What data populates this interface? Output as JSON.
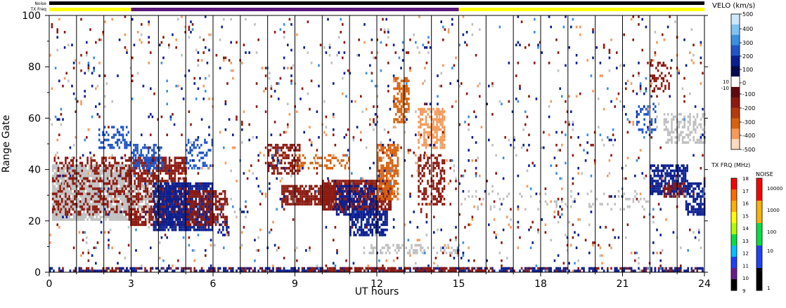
{
  "chart_data": {
    "type": "heatmap",
    "title": "",
    "xlabel": "UT hours",
    "ylabel": "Range Gate",
    "xlim": [
      0,
      24
    ],
    "ylim": [
      0,
      100
    ],
    "x_ticks": [
      "0",
      "3",
      "6",
      "9",
      "12",
      "15",
      "18",
      "21",
      "24"
    ],
    "y_ticks": [
      "0",
      "20",
      "40",
      "60",
      "80",
      "100"
    ],
    "status_bars": [
      {
        "label": "Noise",
        "segments": [
          {
            "x0": 0,
            "x1": 24,
            "color": "#000000"
          }
        ]
      },
      {
        "label": "TX Freq",
        "segments": [
          {
            "x0": 0,
            "x1": 3,
            "color": "#ffff00"
          },
          {
            "x0": 3,
            "x1": 15,
            "color": "#5a167a"
          },
          {
            "x0": 15,
            "x1": 24,
            "color": "#ffff00"
          }
        ]
      }
    ],
    "velocity_scale": {
      "label": "VELO (km/s)",
      "ticks": [
        "500",
        "400",
        "300",
        "200",
        "100",
        "0",
        "10",
        "-10",
        "-100",
        "-200",
        "-300",
        "-400",
        "-500"
      ],
      "colors": [
        "#cde9f8",
        "#7fc3ef",
        "#3b8fe0",
        "#1f55c8",
        "#0b1f90",
        "#08094d",
        "#ffffff",
        "#5c0a10",
        "#8c1a10",
        "#b23a0d",
        "#d8620e",
        "#f59a5a",
        "#fcd9bf"
      ]
    },
    "tx_freq_scale": {
      "label": "TX FRQ (MHz)",
      "ticks": [
        "18",
        "17",
        "16",
        "15",
        "14",
        "13",
        "12",
        "11",
        "10",
        "9"
      ],
      "colors": [
        "#ff0000",
        "#ff6a00",
        "#ffb000",
        "#ffff00",
        "#b0ff00",
        "#00e040",
        "#00c0ff",
        "#2040ff",
        "#6a1a8a",
        "#000000"
      ]
    },
    "noise_scale": {
      "label": "NOISE",
      "ticks": [
        "10000",
        "1000",
        "100",
        "10",
        "1"
      ],
      "colors": [
        "#ff0000",
        "#ffb000",
        "#00e040",
        "#2040ff",
        "#000000"
      ]
    },
    "colors": {
      "ground_scatter": "#c0c0c0",
      "neg_strong": "#8c1a10",
      "neg_orange": "#d8620e",
      "neg_light": "#f59a5a",
      "pos_dark": "#0b1f90",
      "pos_mid": "#1f55c8",
      "pos_light": "#3b8fe0"
    },
    "regions": [
      {
        "t0": 0.1,
        "t1": 3.0,
        "g0": 20,
        "g1": 42,
        "kind": "ground_scatter",
        "density": 0.85
      },
      {
        "t0": 0.1,
        "t1": 3.0,
        "g0": 22,
        "g1": 45,
        "kind": "neg_strong",
        "density": 0.35
      },
      {
        "t0": 2.9,
        "t1": 5.0,
        "g0": 18,
        "g1": 45,
        "kind": "neg_strong",
        "density": 0.75
      },
      {
        "t0": 2.9,
        "t1": 4.0,
        "g0": 25,
        "g1": 35,
        "kind": "ground_scatter",
        "density": 0.4
      },
      {
        "t0": 3.8,
        "t1": 6.0,
        "g0": 16,
        "g1": 35,
        "kind": "pos_dark",
        "density": 0.85
      },
      {
        "t0": 5.0,
        "t1": 6.5,
        "g0": 18,
        "g1": 32,
        "kind": "neg_strong",
        "density": 0.6
      },
      {
        "t0": 6.2,
        "t1": 6.6,
        "g0": 14,
        "g1": 20,
        "kind": "pos_dark",
        "density": 0.5
      },
      {
        "t0": 3.0,
        "t1": 4.2,
        "g0": 40,
        "g1": 50,
        "kind": "pos_mid",
        "density": 0.5
      },
      {
        "t0": 1.8,
        "t1": 3.0,
        "g0": 48,
        "g1": 57,
        "kind": "pos_mid",
        "density": 0.35
      },
      {
        "t0": 5.0,
        "t1": 6.0,
        "g0": 40,
        "g1": 52,
        "kind": "pos_mid",
        "density": 0.3
      },
      {
        "t0": 8.0,
        "t1": 9.2,
        "g0": 38,
        "g1": 50,
        "kind": "neg_strong",
        "density": 0.6
      },
      {
        "t0": 8.5,
        "t1": 10.5,
        "g0": 26,
        "g1": 34,
        "kind": "neg_strong",
        "density": 0.85
      },
      {
        "t0": 10.0,
        "t1": 12.5,
        "g0": 24,
        "g1": 36,
        "kind": "neg_strong",
        "density": 0.85
      },
      {
        "t0": 10.5,
        "t1": 12.0,
        "g0": 22,
        "g1": 34,
        "kind": "pos_dark",
        "density": 0.55
      },
      {
        "t0": 11.0,
        "t1": 12.4,
        "g0": 14,
        "g1": 24,
        "kind": "pos_dark",
        "density": 0.75
      },
      {
        "t0": 12.0,
        "t1": 12.8,
        "g0": 28,
        "g1": 50,
        "kind": "neg_orange",
        "density": 0.7
      },
      {
        "t0": 12.6,
        "t1": 13.2,
        "g0": 58,
        "g1": 76,
        "kind": "neg_orange",
        "density": 0.55
      },
      {
        "t0": 13.5,
        "t1": 14.5,
        "g0": 48,
        "g1": 64,
        "kind": "neg_light",
        "density": 0.6
      },
      {
        "t0": 13.5,
        "t1": 14.5,
        "g0": 26,
        "g1": 46,
        "kind": "neg_strong",
        "density": 0.4
      },
      {
        "t0": 9.0,
        "t1": 11.0,
        "g0": 40,
        "g1": 46,
        "kind": "neg_orange",
        "density": 0.35
      },
      {
        "t0": 15.0,
        "t1": 22.0,
        "g0": 24,
        "g1": 32,
        "kind": "ground_scatter",
        "density": 0.1
      },
      {
        "t0": 22.0,
        "t1": 23.4,
        "g0": 30,
        "g1": 42,
        "kind": "pos_dark",
        "density": 0.75
      },
      {
        "t0": 22.5,
        "t1": 23.3,
        "g0": 29,
        "g1": 35,
        "kind": "neg_strong",
        "density": 0.6
      },
      {
        "t0": 23.3,
        "t1": 24.0,
        "g0": 22,
        "g1": 35,
        "kind": "pos_dark",
        "density": 0.65
      },
      {
        "t0": 22.5,
        "t1": 24.0,
        "g0": 50,
        "g1": 62,
        "kind": "ground_scatter",
        "density": 0.4
      },
      {
        "t0": 21.5,
        "t1": 22.2,
        "g0": 54,
        "g1": 66,
        "kind": "pos_mid",
        "density": 0.3
      },
      {
        "t0": 22.0,
        "t1": 22.8,
        "g0": 70,
        "g1": 82,
        "kind": "neg_strong",
        "density": 0.3
      },
      {
        "t0": 0.0,
        "t1": 24.0,
        "g0": 0,
        "g1": 2,
        "kind": "neg_strong",
        "density": 0.35
      },
      {
        "t0": 0.0,
        "t1": 24.0,
        "g0": 0,
        "g1": 2,
        "kind": "pos_dark",
        "density": 0.45
      },
      {
        "t0": 9.5,
        "t1": 16.0,
        "g0": 0,
        "g1": 2,
        "kind": "neg_strong",
        "density": 0.65
      },
      {
        "t0": 11.5,
        "t1": 15.0,
        "g0": 7,
        "g1": 11,
        "kind": "ground_scatter",
        "density": 0.3
      },
      {
        "t0": 0.0,
        "t1": 24.0,
        "g0": 0,
        "g1": 100,
        "kind": "scatter_mix",
        "density": 0.035
      }
    ]
  }
}
